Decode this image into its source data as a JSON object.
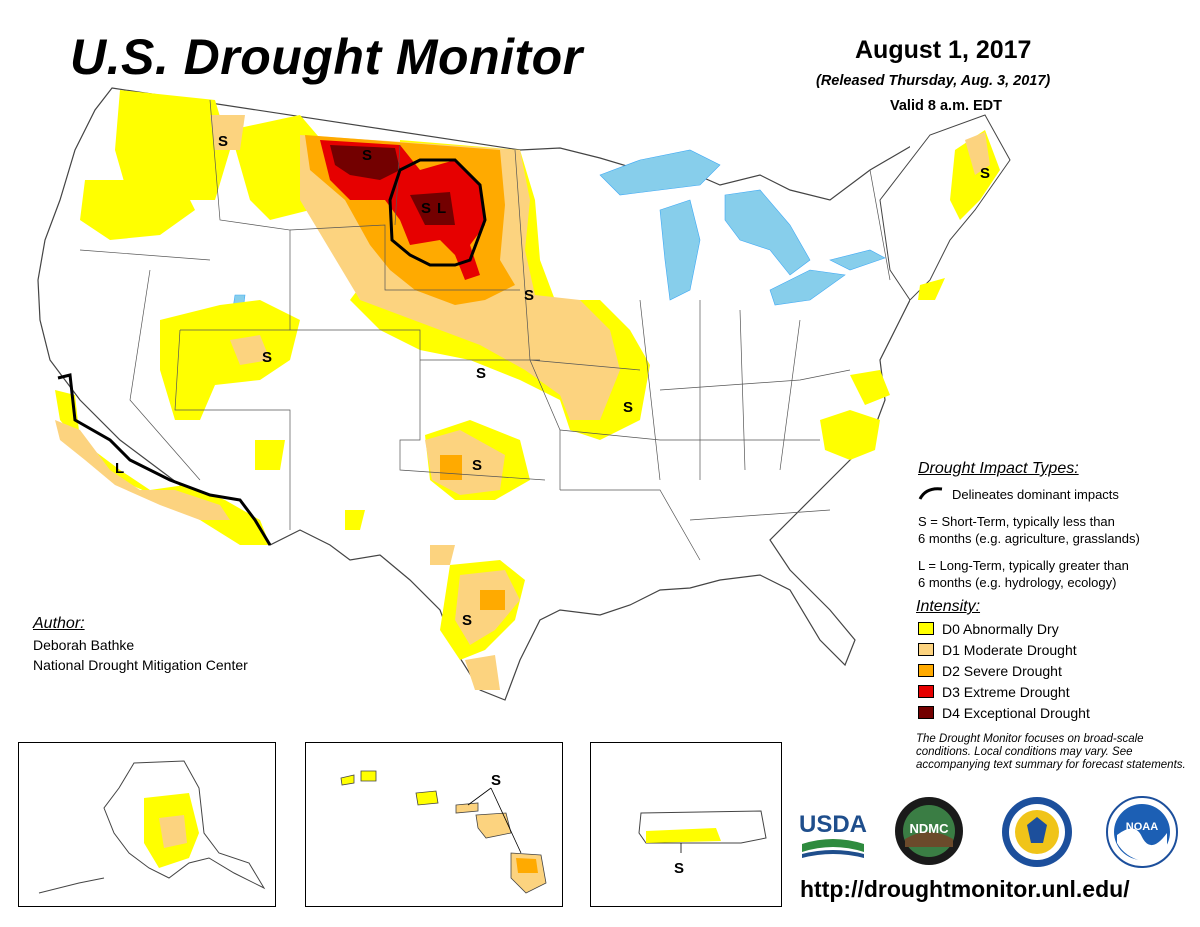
{
  "header": {
    "title": "U.S. Drought Monitor",
    "date": "August 1, 2017",
    "released": "(Released Thursday, Aug. 3, 2017)",
    "valid": "Valid 8 a.m. EDT"
  },
  "map_labels": {
    "short_term": "S",
    "long_term": "L"
  },
  "impact_legend": {
    "heading": "Drought Impact Types:",
    "delineates": "Delineates dominant impacts",
    "s_line1": "S = Short-Term, typically less than",
    "s_line2": "6 months (e.g. agriculture, grasslands)",
    "l_line1": "L = Long-Term, typically greater than",
    "l_line2": "6 months (e.g. hydrology, ecology)"
  },
  "intensity_legend": {
    "heading": "Intensity:",
    "items": [
      {
        "label": "D0 Abnormally Dry",
        "color": "#ffff00"
      },
      {
        "label": "D1 Moderate Drought",
        "color": "#fcd37f"
      },
      {
        "label": "D2 Severe Drought",
        "color": "#ffaa00"
      },
      {
        "label": "D3 Extreme Drought",
        "color": "#e60000"
      },
      {
        "label": "D4 Exceptional Drought",
        "color": "#730000"
      }
    ]
  },
  "author": {
    "heading": "Author:",
    "name": "Deborah Bathke",
    "org": "National Drought Mitigation Center"
  },
  "note": "The Drought Monitor focuses on broad-scale conditions. Local conditions may vary. See accompanying text summary for forecast statements.",
  "logos": {
    "usda": "USDA",
    "ndmc": "NDMC",
    "noaa": "NOAA"
  },
  "url": "http://droughtmonitor.unl.edu/",
  "colors": {
    "water": "#87ceeb",
    "river": "#3fa9f5",
    "border": "#555555"
  }
}
